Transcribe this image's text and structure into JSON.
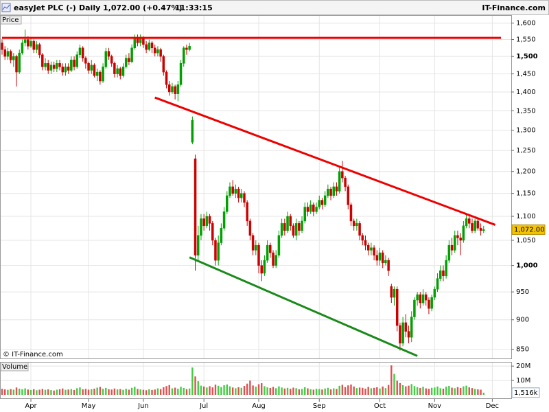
{
  "chart_data": {
    "type": "candlestick",
    "title": "easyJet PLC (-)",
    "interval": "Daily",
    "quote": "1,072.00 (+0.47%)",
    "time": "11:33:15",
    "source": "IT-Finance.com",
    "price_label": "Price",
    "volume_label": "Volume",
    "copyright": "© IT-Finance.com",
    "up_color": "#00a000",
    "down_color": "#cc0000",
    "volume_up_color": "#44cc44",
    "volume_down_color": "#e05050",
    "log_scale": true,
    "grid": true,
    "xlim": [
      0,
      173
    ],
    "xticks": [
      {
        "value": 10,
        "label": "Apr"
      },
      {
        "value": 30,
        "label": "May"
      },
      {
        "value": 49,
        "label": "Jun"
      },
      {
        "value": 70,
        "label": "Jul"
      },
      {
        "value": 89,
        "label": "Aug"
      },
      {
        "value": 110,
        "label": "Sep"
      },
      {
        "value": 131,
        "label": "Oct"
      },
      {
        "value": 150,
        "label": "Nov"
      },
      {
        "value": 170,
        "label": "Dec"
      }
    ],
    "ylim": [
      835,
      1623
    ],
    "yticks": [
      850,
      900,
      950,
      {
        "value": 1000,
        "label": "1,000"
      },
      {
        "value": 1050,
        "label": "1,050"
      },
      {
        "value": 1100,
        "label": "1,100"
      },
      {
        "value": 1150,
        "label": "1,150"
      },
      {
        "value": 1200,
        "label": "1,200"
      },
      {
        "value": 1250,
        "label": "1,250"
      },
      {
        "value": 1300,
        "label": "1,300"
      },
      {
        "value": 1350,
        "label": "1,350"
      },
      {
        "value": 1400,
        "label": "1,400"
      },
      {
        "value": 1450,
        "label": "1,450"
      },
      {
        "value": 1500,
        "label": "1,500"
      },
      {
        "value": 1550,
        "label": "1,550"
      },
      {
        "value": 1600,
        "label": "1,600"
      }
    ],
    "vlim": [
      0,
      21.5
    ],
    "vticks": [
      {
        "value": 10,
        "label": "10M"
      },
      {
        "value": 20,
        "label": "20M"
      }
    ],
    "last_price": {
      "value": 1072,
      "label": "1,072.00"
    },
    "last_volume": {
      "value": 1.516,
      "label": "1,516k"
    },
    "lines": [
      {
        "color": "#ee0000",
        "x": [
          0,
          173
        ],
        "y": [
          1555,
          1555
        ]
      },
      {
        "color": "#ee0000",
        "x": [
          53,
          171
        ],
        "y": [
          1385,
          1082
        ]
      },
      {
        "color": "#1a8a1a",
        "x": [
          65,
          144
        ],
        "y": [
          1016,
          839
        ]
      }
    ],
    "open": [
      1540,
      1520,
      1500,
      1515,
      1490,
      1500,
      1455,
      1510,
      1540,
      1550,
      1530,
      1545,
      1520,
      1535,
      1505,
      1470,
      1480,
      1460,
      1475,
      1465,
      1480,
      1470,
      1455,
      1470,
      1460,
      1490,
      1470,
      1505,
      1525,
      1495,
      1480,
      1460,
      1475,
      1445,
      1455,
      1430,
      1470,
      1515,
      1500,
      1480,
      1450,
      1465,
      1445,
      1470,
      1495,
      1485,
      1525,
      1555,
      1540,
      1555,
      1535,
      1520,
      1540,
      1525,
      1510,
      1520,
      1500,
      1455,
      1420,
      1400,
      1415,
      1395,
      1420,
      1480,
      1525,
      1520,
      1270,
      1230,
      1020,
      1060,
      1095,
      1080,
      1100,
      1085,
      1050,
      1010,
      1045,
      1075,
      1110,
      1145,
      1165,
      1150,
      1160,
      1140,
      1150,
      1130,
      1090,
      1060,
      1030,
      1040,
      1000,
      985,
      1010,
      1040,
      1025,
      1000,
      1020,
      1060,
      1085,
      1070,
      1100,
      1080,
      1060,
      1085,
      1070,
      1090,
      1120,
      1110,
      1125,
      1110,
      1120,
      1135,
      1125,
      1145,
      1160,
      1145,
      1165,
      1155,
      1200,
      1185,
      1165,
      1125,
      1090,
      1080,
      1085,
      1060,
      1050,
      1040,
      1030,
      1035,
      1020,
      1010,
      1025,
      1005,
      1010,
      960,
      940,
      955,
      890,
      860,
      895,
      880,
      870,
      905,
      935,
      945,
      930,
      945,
      935,
      920,
      940,
      955,
      975,
      990,
      980,
      1010,
      1040,
      1030,
      1060,
      1055,
      1050,
      1080,
      1095,
      1085,
      1070,
      1090,
      1075,
      1070
    ],
    "high": [
      1550,
      1530,
      1525,
      1520,
      1510,
      1505,
      1520,
      1550,
      1580,
      1560,
      1555,
      1550,
      1545,
      1540,
      1510,
      1495,
      1490,
      1485,
      1485,
      1490,
      1490,
      1480,
      1480,
      1480,
      1500,
      1500,
      1515,
      1535,
      1530,
      1500,
      1485,
      1490,
      1480,
      1465,
      1460,
      1480,
      1525,
      1525,
      1505,
      1485,
      1475,
      1470,
      1480,
      1505,
      1510,
      1535,
      1565,
      1565,
      1565,
      1560,
      1545,
      1550,
      1545,
      1535,
      1530,
      1525,
      1505,
      1460,
      1430,
      1425,
      1420,
      1430,
      1490,
      1530,
      1535,
      1540,
      1335,
      1240,
      1080,
      1105,
      1105,
      1110,
      1105,
      1090,
      1055,
      1060,
      1085,
      1120,
      1155,
      1175,
      1180,
      1170,
      1165,
      1160,
      1155,
      1135,
      1095,
      1065,
      1050,
      1045,
      1010,
      1020,
      1050,
      1045,
      1030,
      1030,
      1070,
      1095,
      1095,
      1110,
      1105,
      1085,
      1095,
      1090,
      1100,
      1130,
      1130,
      1135,
      1130,
      1130,
      1145,
      1140,
      1155,
      1170,
      1165,
      1175,
      1175,
      1210,
      1225,
      1190,
      1170,
      1130,
      1095,
      1095,
      1090,
      1065,
      1060,
      1045,
      1045,
      1040,
      1030,
      1035,
      1030,
      1020,
      1015,
      965,
      960,
      960,
      895,
      905,
      910,
      890,
      915,
      940,
      950,
      950,
      955,
      950,
      940,
      945,
      960,
      985,
      1000,
      1000,
      1020,
      1050,
      1055,
      1070,
      1070,
      1065,
      1090,
      1105,
      1100,
      1095,
      1095,
      1095,
      1085,
      1080
    ],
    "low": [
      1505,
      1490,
      1490,
      1480,
      1470,
      1415,
      1450,
      1505,
      1530,
      1520,
      1525,
      1510,
      1510,
      1495,
      1460,
      1460,
      1450,
      1450,
      1455,
      1455,
      1460,
      1445,
      1445,
      1450,
      1455,
      1460,
      1465,
      1495,
      1485,
      1465,
      1450,
      1450,
      1440,
      1430,
      1420,
      1425,
      1465,
      1490,
      1470,
      1440,
      1440,
      1435,
      1440,
      1465,
      1475,
      1480,
      1520,
      1530,
      1530,
      1525,
      1510,
      1515,
      1510,
      1500,
      1500,
      1485,
      1445,
      1410,
      1390,
      1395,
      1380,
      1375,
      1415,
      1470,
      1505,
      1515,
      1265,
      990,
      1010,
      1050,
      1070,
      1075,
      1070,
      1040,
      1000,
      1000,
      1040,
      1070,
      1105,
      1140,
      1145,
      1140,
      1130,
      1130,
      1120,
      1080,
      1050,
      1020,
      1020,
      985,
      970,
      980,
      1005,
      1015,
      995,
      995,
      1015,
      1055,
      1060,
      1065,
      1070,
      1055,
      1050,
      1060,
      1065,
      1085,
      1100,
      1105,
      1100,
      1105,
      1115,
      1115,
      1120,
      1140,
      1135,
      1140,
      1145,
      1150,
      1175,
      1155,
      1115,
      1080,
      1070,
      1070,
      1050,
      1040,
      1030,
      1020,
      1020,
      1010,
      1000,
      1000,
      995,
      1000,
      980,
      930,
      925,
      880,
      848,
      855,
      870,
      860,
      862,
      900,
      925,
      920,
      925,
      925,
      910,
      915,
      935,
      950,
      970,
      970,
      975,
      1005,
      1020,
      1025,
      1040,
      1020,
      1045,
      1075,
      1075,
      1065,
      1065,
      1070,
      1060,
      1065
    ],
    "close": [
      1520,
      1500,
      1515,
      1490,
      1500,
      1455,
      1510,
      1540,
      1550,
      1530,
      1545,
      1520,
      1535,
      1505,
      1470,
      1480,
      1460,
      1475,
      1465,
      1480,
      1470,
      1455,
      1470,
      1460,
      1490,
      1470,
      1505,
      1525,
      1495,
      1480,
      1460,
      1475,
      1445,
      1455,
      1430,
      1470,
      1515,
      1500,
      1480,
      1450,
      1465,
      1445,
      1470,
      1495,
      1485,
      1525,
      1555,
      1540,
      1555,
      1535,
      1520,
      1540,
      1525,
      1510,
      1520,
      1500,
      1455,
      1420,
      1400,
      1415,
      1395,
      1420,
      1480,
      1525,
      1520,
      1530,
      1325,
      1020,
      1060,
      1095,
      1080,
      1100,
      1085,
      1050,
      1010,
      1045,
      1075,
      1110,
      1145,
      1165,
      1150,
      1160,
      1140,
      1150,
      1130,
      1090,
      1060,
      1030,
      1040,
      1000,
      985,
      1010,
      1040,
      1025,
      1000,
      1020,
      1060,
      1085,
      1070,
      1100,
      1080,
      1060,
      1085,
      1070,
      1090,
      1120,
      1110,
      1125,
      1110,
      1120,
      1135,
      1125,
      1145,
      1160,
      1145,
      1165,
      1155,
      1200,
      1185,
      1165,
      1125,
      1090,
      1080,
      1085,
      1060,
      1050,
      1040,
      1030,
      1035,
      1020,
      1010,
      1025,
      1005,
      1010,
      990,
      940,
      955,
      890,
      860,
      895,
      880,
      870,
      905,
      935,
      945,
      930,
      945,
      935,
      920,
      940,
      955,
      975,
      990,
      980,
      1010,
      1040,
      1030,
      1060,
      1055,
      1050,
      1080,
      1095,
      1085,
      1070,
      1090,
      1075,
      1070,
      1072
    ],
    "volume": [
      4.2,
      3.8,
      3.5,
      4.0,
      3.6,
      5.1,
      4.3,
      3.9,
      4.5,
      3.7,
      3.4,
      3.9,
      3.2,
      3.6,
      4.1,
      3.5,
      3.8,
      3.3,
      3.0,
      3.6,
      3.9,
      4.4,
      3.5,
      3.7,
      4.0,
      3.4,
      4.6,
      5.2,
      3.8,
      4.1,
      3.6,
      3.9,
      4.3,
      5.0,
      5.5,
      4.2,
      4.8,
      3.9,
      3.7,
      4.4,
      3.8,
      4.0,
      3.5,
      4.2,
      3.6,
      4.9,
      5.6,
      4.1,
      3.8,
      3.5,
      3.2,
      3.9,
      3.4,
      3.7,
      4.5,
      4.0,
      5.3,
      6.1,
      6.8,
      4.5,
      5.0,
      4.2,
      5.6,
      4.8,
      3.9,
      4.4,
      19.0,
      12.8,
      9.5,
      6.4,
      5.8,
      5.1,
      6.0,
      5.2,
      7.1,
      6.3,
      5.4,
      6.7,
      7.2,
      5.9,
      5.1,
      4.6,
      5.3,
      4.9,
      6.2,
      7.8,
      9.9,
      6.5,
      5.7,
      7.4,
      8.1,
      6.0,
      5.2,
      4.8,
      5.5,
      4.6,
      5.9,
      5.1,
      4.4,
      4.9,
      4.2,
      5.0,
      4.6,
      3.8,
      4.1,
      5.3,
      4.5,
      3.9,
      3.6,
      4.2,
      4.0,
      3.7,
      4.4,
      4.9,
      3.8,
      4.5,
      4.1,
      6.3,
      7.0,
      5.4,
      6.6,
      7.2,
      5.8,
      4.7,
      5.1,
      4.9,
      4.3,
      5.5,
      4.6,
      4.9,
      5.3,
      4.4,
      5.8,
      4.7,
      6.9,
      20.5,
      14.6,
      9.8,
      8.2,
      6.7,
      5.9,
      6.4,
      7.5,
      6.1,
      5.3,
      4.8,
      5.6,
      4.5,
      4.2,
      4.9,
      5.1,
      5.8,
      4.6,
      4.3,
      5.7,
      6.2,
      5.0,
      4.6,
      5.4,
      4.8,
      5.9,
      6.4,
      5.2,
      4.7,
      4.1,
      3.8,
      3.6,
      1.516
    ]
  }
}
